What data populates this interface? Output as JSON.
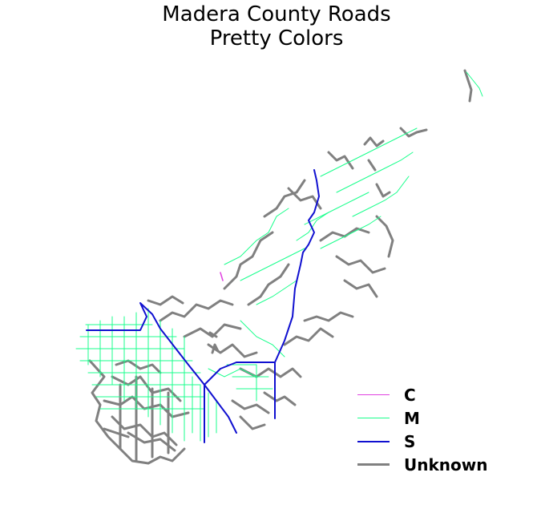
{
  "title": {
    "line1": "Madera County Roads",
    "line2": "Pretty Colors"
  },
  "legend": {
    "items": [
      {
        "label": "C",
        "color": "#e040e0",
        "width": 1.5
      },
      {
        "label": "M",
        "color": "#19ff8c",
        "width": 1.5
      },
      {
        "label": "S",
        "color": "#1010d0",
        "width": 2
      },
      {
        "label": "Unknown",
        "color": "#808080",
        "width": 3
      }
    ]
  },
  "colors": {
    "unknown": "#808080",
    "m": "#19ff8c",
    "s": "#1010d0",
    "c": "#e040e0"
  }
}
